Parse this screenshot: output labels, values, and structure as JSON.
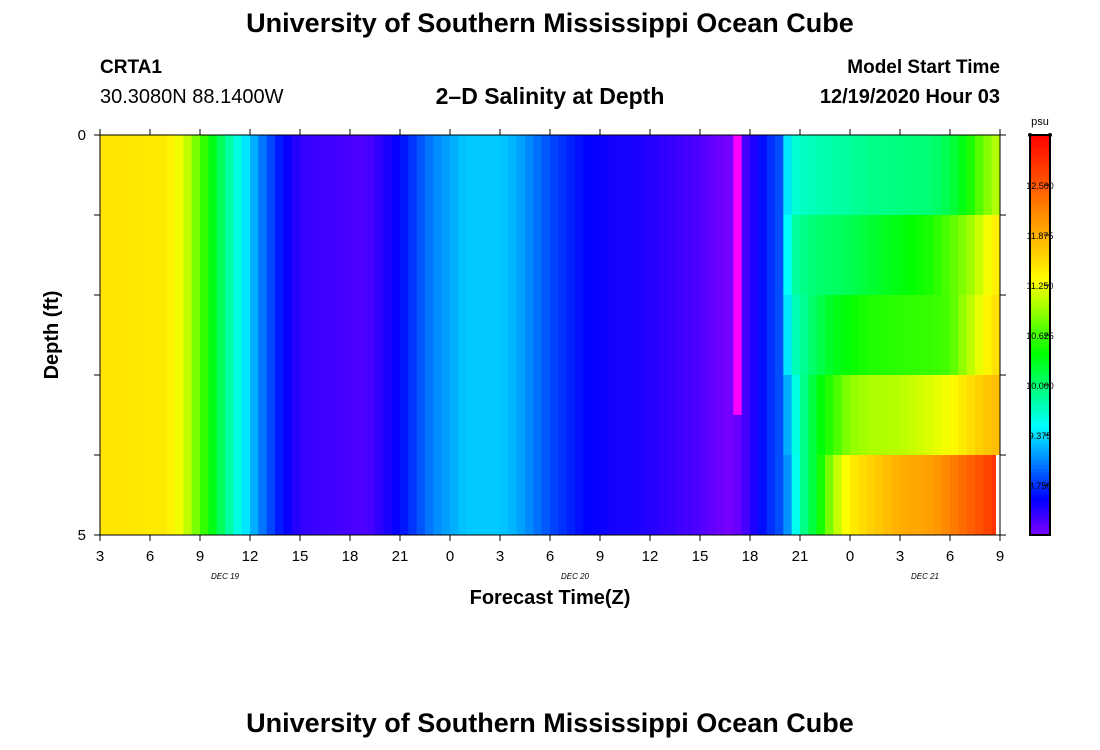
{
  "header": {
    "title_top": "University of Southern Mississippi Ocean Cube",
    "title_bottom": "University of Southern Mississippi Ocean Cube",
    "station_id": "CRTA1",
    "station_coords": "30.3080N 88.1400W",
    "model_start_label": "Model Start Time",
    "model_start_time": "12/19/2020 Hour 03"
  },
  "chart_data": {
    "type": "heatmap",
    "title": "2–D Salinity at Depth",
    "xlabel": "Forecast Time(Z)",
    "ylabel": "Depth (ft)",
    "x_tick_labels": [
      "3",
      "6",
      "9",
      "12",
      "15",
      "18",
      "21",
      "0",
      "3",
      "6",
      "9",
      "12",
      "15",
      "18",
      "21",
      "0",
      "3",
      "6",
      "9"
    ],
    "x_date_labels": [
      {
        "label": "DEC 19",
        "tick_index": 2.5
      },
      {
        "label": "DEC 20",
        "tick_index": 9.5
      },
      {
        "label": "DEC 21",
        "tick_index": 16.5
      }
    ],
    "x_range_hours": [
      0,
      54
    ],
    "y_tick_labels": [
      "0",
      "5"
    ],
    "y_range_ft": [
      0,
      5
    ],
    "depth_levels_ft": [
      0.5,
      1.5,
      2.5,
      3.5,
      4.5
    ],
    "colorbar": {
      "unit": "psu",
      "min": 8.125,
      "max": 13.125,
      "tick_values": [
        8.75,
        9.375,
        10.0,
        10.625,
        11.25,
        11.875,
        12.5
      ],
      "tick_labels": [
        "8.750",
        "9.375",
        "10.000",
        "10.625",
        "11.250",
        "11.875",
        "12.500"
      ],
      "colors": [
        "#8000ff",
        "#0000ff",
        "#0080ff",
        "#00ffff",
        "#00ff80",
        "#00ff00",
        "#80ff00",
        "#ffff00",
        "#ffc000",
        "#ff8000",
        "#ff4000",
        "#ff0000"
      ]
    },
    "uniform_profile": {
      "hours": [
        0,
        4,
        5,
        6,
        7,
        8,
        9,
        10,
        11,
        12,
        14,
        16,
        18,
        20,
        22,
        24,
        25,
        27,
        29,
        31,
        32,
        34,
        36,
        37,
        38,
        39,
        40,
        41
      ],
      "values": [
        11.5,
        11.45,
        11.2,
        10.7,
        10.2,
        9.7,
        9.3,
        8.9,
        8.6,
        8.4,
        8.35,
        8.3,
        8.6,
        9.05,
        9.3,
        9.3,
        9.2,
        8.85,
        8.6,
        8.5,
        8.5,
        8.4,
        8.3,
        8.2,
        8.15,
        8.4,
        8.7,
        8.9
      ]
    },
    "magenta_streak": {
      "hours": [
        38,
        38.5
      ],
      "value": 13.4,
      "depth_ft": [
        0,
        3.5
      ]
    },
    "late_profiles": {
      "hours": [
        41,
        41.5,
        42,
        43,
        44,
        45,
        46,
        48,
        50,
        51,
        52,
        53,
        54
      ],
      "levels": [
        [
          9.2,
          9.6,
          9.7,
          9.75,
          9.8,
          9.85,
          9.9,
          9.95,
          10.0,
          10.15,
          10.4,
          10.8,
          11.1
        ],
        [
          9.2,
          9.8,
          9.9,
          10.0,
          10.05,
          10.1,
          10.2,
          10.35,
          10.5,
          10.7,
          10.9,
          11.2,
          11.5
        ],
        [
          9.1,
          9.7,
          9.8,
          10.1,
          10.3,
          10.4,
          10.5,
          10.55,
          10.6,
          10.65,
          11.0,
          11.3,
          11.6
        ],
        [
          9.0,
          9.4,
          9.8,
          10.3,
          10.6,
          10.9,
          11.0,
          11.05,
          11.2,
          11.3,
          11.5,
          11.7,
          11.8
        ],
        [
          8.9,
          9.3,
          9.8,
          10.3,
          11.0,
          11.4,
          11.6,
          11.9,
          12.0,
          12.2,
          12.4,
          12.6,
          12.8
        ]
      ]
    }
  }
}
